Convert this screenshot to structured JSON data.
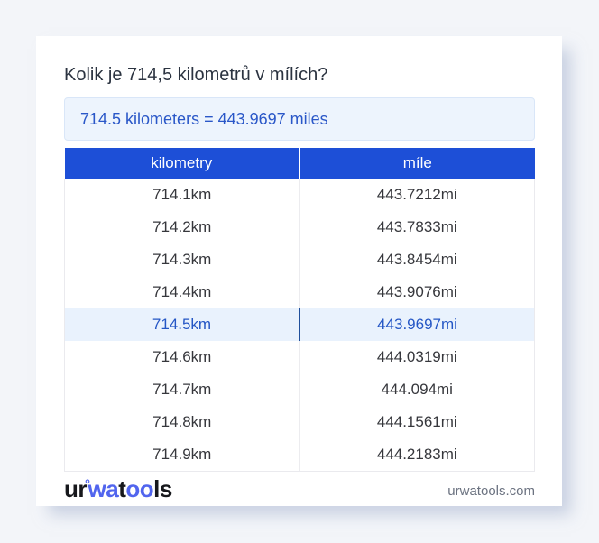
{
  "page": {
    "title": "Kolik je 714,5 kilometrů v mílích?",
    "result_text": "714.5 kilometers = 443.9697 miles"
  },
  "table": {
    "headers": [
      "kilometry",
      "míle"
    ],
    "rows": [
      {
        "km": "714.1km",
        "mi": "443.7212mi",
        "highlight": false
      },
      {
        "km": "714.2km",
        "mi": "443.7833mi",
        "highlight": false
      },
      {
        "km": "714.3km",
        "mi": "443.8454mi",
        "highlight": false
      },
      {
        "km": "714.4km",
        "mi": "443.9076mi",
        "highlight": false
      },
      {
        "km": "714.5km",
        "mi": "443.9697mi",
        "highlight": true
      },
      {
        "km": "714.6km",
        "mi": "444.0319mi",
        "highlight": false
      },
      {
        "km": "714.7km",
        "mi": "444.094mi",
        "highlight": false
      },
      {
        "km": "714.8km",
        "mi": "444.1561mi",
        "highlight": false
      },
      {
        "km": "714.9km",
        "mi": "444.2183mi",
        "highlight": false
      }
    ]
  },
  "footer": {
    "logo": {
      "part1": "ur",
      "ring": "°",
      "part2": "wa",
      "part3": "t",
      "part4": "oo",
      "part5": "ls"
    },
    "domain": "urwatools.com"
  },
  "colors": {
    "page_background": "#f3f5f9",
    "card_background": "#ffffff",
    "header_blue": "#1d4fd7",
    "result_box_background": "#edf4fd",
    "result_text_blue": "#2a57c8",
    "highlight_row_background": "#e9f2fd",
    "highlight_text_blue": "#2456c5",
    "highlight_divider_blue": "#1f4f9c",
    "logo_blue": "#5165ee",
    "title_text": "#2b3340",
    "body_text": "#36373c",
    "domain_text": "#6b7280"
  }
}
